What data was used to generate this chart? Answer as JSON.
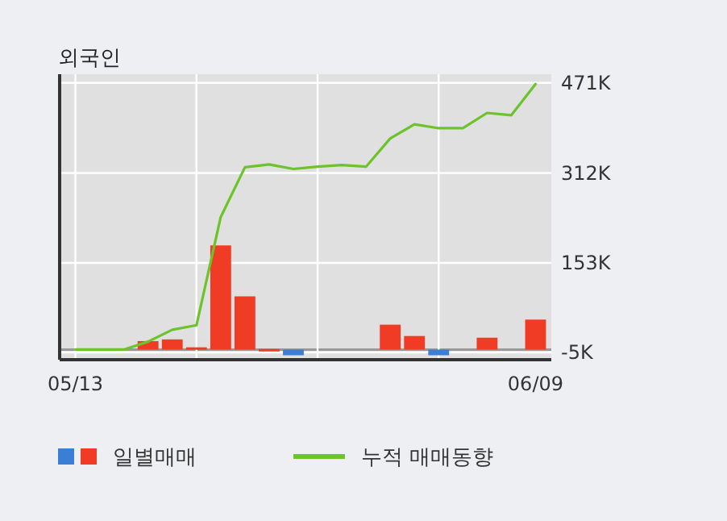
{
  "chart_data": {
    "type": "bar",
    "title": "외국인",
    "categories": [
      "05/13",
      null,
      null,
      null,
      null,
      null,
      null,
      null,
      null,
      null,
      null,
      null,
      null,
      null,
      null,
      null,
      null,
      null,
      null,
      "06/09"
    ],
    "series": [
      {
        "name": "일별매매",
        "colors": [
          "#f03c24",
          "#f03c24",
          "#f03c24",
          "#f03c24",
          "#f03c24",
          "#f03c24",
          "#f03c24",
          "#f03c24",
          "#f03c24",
          "#3a7fd5",
          "#f03c24",
          "#f03c24",
          "#f03c24",
          "#f03c24",
          "#f03c24",
          "#3a7fd5",
          "#f03c24",
          "#f03c24",
          "#f03c24",
          "#f03c24"
        ],
        "values": [
          0,
          0,
          0,
          15000,
          18000,
          4000,
          184000,
          94000,
          1000,
          -10000,
          0,
          0,
          0,
          44000,
          24000,
          -10000,
          0,
          21000,
          0,
          53000
        ]
      },
      {
        "type": "line",
        "name": "누적 매매동향",
        "color": "#6cc32a",
        "values": [
          0,
          0,
          0,
          14000,
          35000,
          43000,
          234000,
          322000,
          327000,
          319000,
          323000,
          326000,
          323000,
          373000,
          398000,
          391000,
          391000,
          418000,
          414000,
          469000
        ]
      }
    ],
    "ylim": [
      -15000,
      475000
    ],
    "yticks": [
      {
        "value": -5000,
        "label": "-5K"
      },
      {
        "value": 153000,
        "label": "153K"
      },
      {
        "value": 312000,
        "label": "312K"
      },
      {
        "value": 471000,
        "label": "471K"
      }
    ],
    "ref_lines": [
      {
        "axis": "y",
        "value": 0,
        "color": "#999999"
      }
    ],
    "grid": true,
    "legend": "bottom"
  }
}
